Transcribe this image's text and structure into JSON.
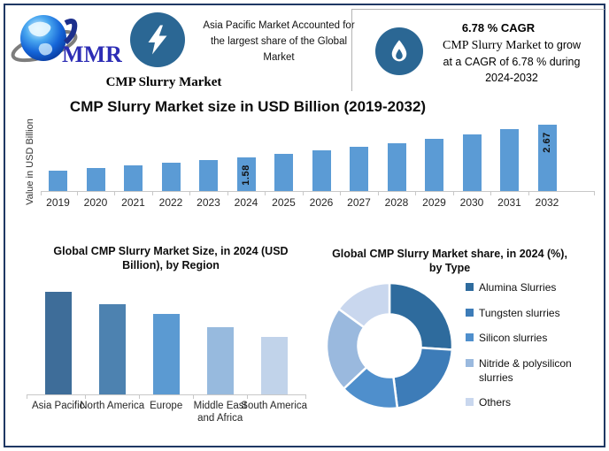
{
  "brand": {
    "logo_text": "MMR"
  },
  "header": {
    "highlight_text": "Asia Pacific Market Accounted for the largest share of the Global Market",
    "report_title": "CMP Slurry Market",
    "cagr": {
      "headline": "6.78 % CAGR",
      "line1_serif": "CMP Slurry Market",
      "line1_rest": "to grow",
      "line2": "at a CAGR of 6.78 % during",
      "line3": "2024-2032"
    }
  },
  "chart_data": [
    {
      "type": "bar",
      "title": "CMP Slurry Market size in USD Billion (2019-2032)",
      "xlabel": "",
      "ylabel": "Value in USD Billion",
      "categories": [
        "2019",
        "2020",
        "2021",
        "2022",
        "2023",
        "2024",
        "2025",
        "2026",
        "2027",
        "2028",
        "2029",
        "2030",
        "2031",
        "2032"
      ],
      "values": [
        1.14,
        1.22,
        1.3,
        1.39,
        1.48,
        1.58,
        1.69,
        1.8,
        1.92,
        2.05,
        2.19,
        2.34,
        2.5,
        2.67
      ],
      "data_labels": {
        "2024": "1.58",
        "2032": "2.67"
      },
      "ylim": [
        0.45,
        2.75
      ],
      "bar_color": "#5b9bd5",
      "grid": false,
      "legend_position": "none"
    },
    {
      "type": "bar",
      "title": "Global CMP Slurry Market Size, in 2024 (USD Billion), by Region",
      "xlabel": "",
      "ylabel": "",
      "categories": [
        "Asia Pacific",
        "North America",
        "Europe",
        "Middle East and Africa",
        "South America"
      ],
      "values": [
        0.41,
        0.36,
        0.32,
        0.27,
        0.23
      ],
      "ylim": [
        0,
        0.53
      ],
      "colors": [
        "#3e6d99",
        "#4d82b0",
        "#5b9ad2",
        "#97bade",
        "#c1d3ea"
      ],
      "grid": false,
      "legend_position": "none"
    },
    {
      "type": "donut",
      "title": "Global CMP Slurry Market share, in 2024 (%), by Type",
      "labels": [
        "Alumina Slurries",
        "Tungsten slurries",
        "Silicon slurries",
        "Nitride & polysilicon slurries",
        "Others"
      ],
      "values": [
        26,
        22,
        15,
        22,
        15
      ],
      "colors": [
        "#2e6b9d",
        "#3d7cb8",
        "#4f8fcc",
        "#9ab9de",
        "#c9d7ee"
      ],
      "legend_position": "right"
    }
  ],
  "colors": {
    "outer_border": "#1f3864",
    "icon_circle": "#2b6794",
    "axis_line": "#c8c8c8",
    "logo_text_blue": "#2d2db5"
  }
}
